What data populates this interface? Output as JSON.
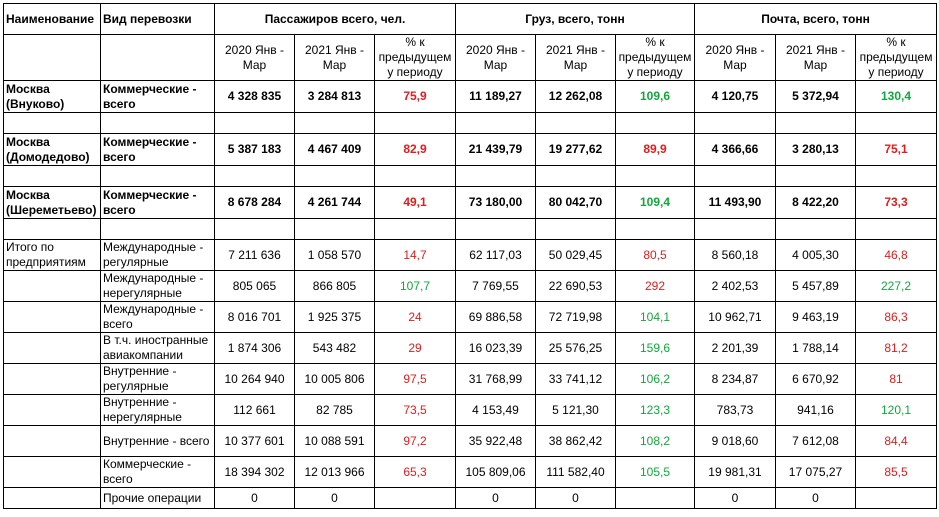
{
  "headers": {
    "name": "Наименование",
    "transport_type": "Вид перевозки",
    "groups": [
      "Пассажиров всего, чел.",
      "Груз, всего, тонн",
      "Почта, всего, тонн"
    ],
    "sub": [
      "2020 Янв - Мар",
      "2021 Янв - Мар",
      "% к предыдущем у периоду"
    ]
  },
  "colors": {
    "red": "#e21b1b",
    "green": "#11a83a"
  },
  "cities": [
    {
      "name": "Москва (Внуково)",
      "type": "Коммерческие - всего",
      "values": [
        "4 328 835",
        "3 284 813",
        "75,9",
        "11 189,27",
        "12 262,08",
        "109,6",
        "4 120,75",
        "5 372,94",
        "130,4"
      ],
      "pct_colors": [
        "red",
        "green",
        "green"
      ]
    },
    {
      "name": "Москва (Домодедово)",
      "type": "Коммерческие - всего",
      "values": [
        "5 387 183",
        "4 467 409",
        "82,9",
        "21 439,79",
        "19 277,62",
        "89,9",
        "4 366,66",
        "3 280,13",
        "75,1"
      ],
      "pct_colors": [
        "red",
        "red",
        "red"
      ]
    },
    {
      "name": "Москва (Шереметьево)",
      "type": "Коммерческие - всего",
      "values": [
        "8 678 284",
        "4 261 744",
        "49,1",
        "73 180,00",
        "80 042,70",
        "109,4",
        "11 493,90",
        "8 422,20",
        "73,3"
      ],
      "pct_colors": [
        "red",
        "green",
        "red"
      ]
    }
  ],
  "totals_label": "Итого по предприятиям",
  "totals": [
    {
      "type": "Международные - регулярные",
      "values": [
        "7 211 636",
        "1 058 570",
        "14,7",
        "62 117,03",
        "50 029,45",
        "80,5",
        "8 560,18",
        "4 005,30",
        "46,8"
      ],
      "pct_colors": [
        "red",
        "red",
        "red"
      ]
    },
    {
      "type": "Международные - нерегулярные",
      "values": [
        "805 065",
        "866 805",
        "107,7",
        "7 769,55",
        "22 690,53",
        "292",
        "2 402,53",
        "5 457,89",
        "227,2"
      ],
      "pct_colors": [
        "green",
        "red",
        "green"
      ]
    },
    {
      "type": "Международные - всего",
      "values": [
        "8 016 701",
        "1 925 375",
        "24",
        "69 886,58",
        "72 719,98",
        "104,1",
        "10 962,71",
        "9 463,19",
        "86,3"
      ],
      "pct_colors": [
        "red",
        "green",
        "red"
      ]
    },
    {
      "type": "В т.ч. иностранные авиакомпании",
      "values": [
        "1 874 306",
        "543 482",
        "29",
        "16 023,39",
        "25 576,25",
        "159,6",
        "2 201,39",
        "1 788,14",
        "81,2"
      ],
      "pct_colors": [
        "red",
        "green",
        "red"
      ]
    },
    {
      "type": "Внутренние - регулярные",
      "values": [
        "10 264 940",
        "10 005 806",
        "97,5",
        "31 768,99",
        "33 741,12",
        "106,2",
        "8 234,87",
        "6 670,92",
        "81"
      ],
      "pct_colors": [
        "red",
        "green",
        "red"
      ]
    },
    {
      "type": "Внутренние - нерегулярные",
      "values": [
        "112 661",
        "82 785",
        "73,5",
        "4 153,49",
        "5 121,30",
        "123,3",
        "783,73",
        "941,16",
        "120,1"
      ],
      "pct_colors": [
        "red",
        "green",
        "green"
      ]
    },
    {
      "type": "Внутренние - всего",
      "values": [
        "10 377 601",
        "10 088 591",
        "97,2",
        "35 922,48",
        "38 862,42",
        "108,2",
        "9 018,60",
        "7 612,08",
        "84,4"
      ],
      "pct_colors": [
        "red",
        "green",
        "red"
      ]
    },
    {
      "type": "Коммерческие - всего",
      "values": [
        "18 394 302",
        "12 013 966",
        "65,3",
        "105 809,06",
        "111 582,40",
        "105,5",
        "19 981,31",
        "17 075,27",
        "85,5"
      ],
      "pct_colors": [
        "red",
        "green",
        "red"
      ]
    },
    {
      "type": "Прочие операции",
      "values": [
        "0",
        "0",
        "",
        "0",
        "0",
        "",
        "0",
        "0",
        ""
      ],
      "pct_colors": [
        "",
        "",
        ""
      ]
    }
  ]
}
